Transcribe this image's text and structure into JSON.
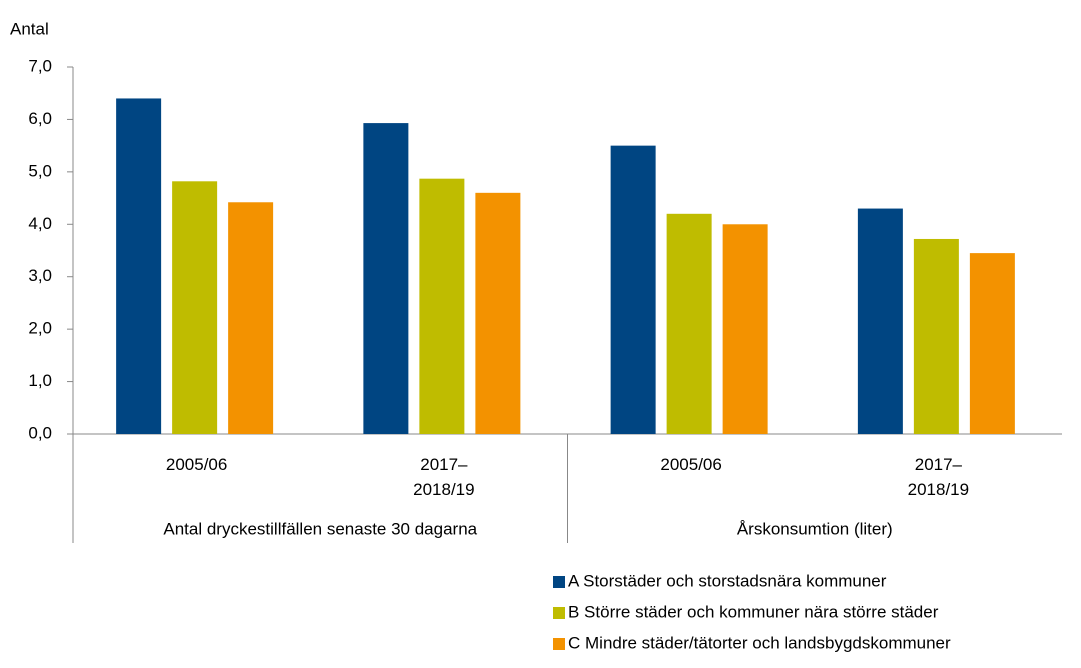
{
  "chart_data": {
    "type": "bar",
    "y_label": "Antal",
    "categories": [
      "2005/06",
      "2017–2018/19",
      "2005/06",
      "2017–2018/19"
    ],
    "category_groups": [
      "Antal dryckestillfällen senaste 30 dagarna",
      "Årskonsumtion (liter)"
    ],
    "series": [
      {
        "name": "A Storstäder och storstadsnära kommuner",
        "color": "#004582",
        "values": [
          6.4,
          5.93,
          5.5,
          4.3
        ]
      },
      {
        "name": "B Större städer och kommuner nära större städer",
        "color": "#bfbc00",
        "values": [
          4.82,
          4.87,
          4.2,
          3.72
        ]
      },
      {
        "name": "C Mindre städer/tätorter och landsbygdskommuner",
        "color": "#f39200",
        "values": [
          4.42,
          4.6,
          4.0,
          3.45
        ]
      }
    ],
    "ylim": [
      0,
      7
    ],
    "yticks": [
      {
        "value": 0,
        "label": "0,0"
      },
      {
        "value": 1,
        "label": "1,0"
      },
      {
        "value": 2,
        "label": "2,0"
      },
      {
        "value": 3,
        "label": "3,0"
      },
      {
        "value": 4,
        "label": "4,0"
      },
      {
        "value": 5,
        "label": "5,0"
      },
      {
        "value": 6,
        "label": "6,0"
      },
      {
        "value": 7,
        "label": "7,0"
      }
    ],
    "grid": false,
    "legend": "bottom-right"
  }
}
